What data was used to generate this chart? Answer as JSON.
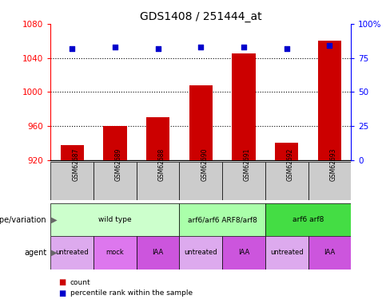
{
  "title": "GDS1408 / 251444_at",
  "samples": [
    "GSM62687",
    "GSM62689",
    "GSM62688",
    "GSM62690",
    "GSM62691",
    "GSM62692",
    "GSM62693"
  ],
  "bar_values": [
    937,
    960,
    970,
    1008,
    1045,
    940,
    1060
  ],
  "bar_bottom": 920,
  "percentile_values": [
    82,
    83,
    82,
    83,
    83,
    82,
    84
  ],
  "ylim_left": [
    920,
    1080
  ],
  "ylim_right": [
    0,
    100
  ],
  "yticks_left": [
    920,
    960,
    1000,
    1040,
    1080
  ],
  "yticks_right": [
    0,
    25,
    50,
    75,
    100
  ],
  "bar_color": "#cc0000",
  "percentile_color": "#0000cc",
  "genotype_groups": [
    {
      "label": "wild type",
      "start": 0,
      "end": 3,
      "color": "#ccffcc"
    },
    {
      "label": "arf6/arf6 ARF8/arf8",
      "start": 3,
      "end": 5,
      "color": "#aaffaa"
    },
    {
      "label": "arf6 arf8",
      "start": 5,
      "end": 7,
      "color": "#44dd44"
    }
  ],
  "agent_groups": [
    {
      "label": "untreated",
      "start": 0,
      "end": 1,
      "color": "#ddaaee"
    },
    {
      "label": "mock",
      "start": 1,
      "end": 2,
      "color": "#dd77ee"
    },
    {
      "label": "IAA",
      "start": 2,
      "end": 3,
      "color": "#cc55dd"
    },
    {
      "label": "untreated",
      "start": 3,
      "end": 4,
      "color": "#ddaaee"
    },
    {
      "label": "IAA",
      "start": 4,
      "end": 5,
      "color": "#cc55dd"
    },
    {
      "label": "untreated",
      "start": 5,
      "end": 6,
      "color": "#ddaaee"
    },
    {
      "label": "IAA",
      "start": 6,
      "end": 7,
      "color": "#cc55dd"
    }
  ],
  "sample_box_color": "#cccccc",
  "legend_count_color": "#cc0000",
  "legend_percentile_color": "#0000cc"
}
